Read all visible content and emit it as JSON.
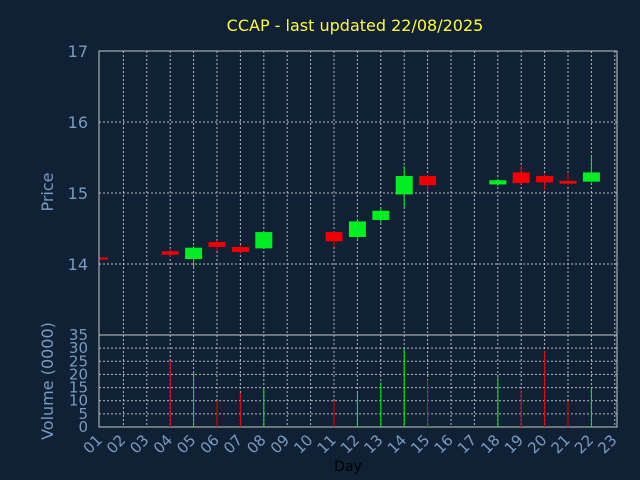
{
  "title": "CCAP - last updated 22/08/2025",
  "colors": {
    "background": "#102035",
    "title": "#ffff33",
    "axis_text": "#7a9cc0",
    "grid": "#c8c8c8",
    "up": "#00ee22",
    "down": "#ee0000",
    "xlabel": "#000000"
  },
  "chart_data": [
    {
      "type": "candlestick",
      "ylabel": "Price",
      "ylim": [
        13.0,
        17.0
      ],
      "yticks": [
        14,
        15,
        16,
        17
      ],
      "grid": true,
      "candles": [
        {
          "day": "01",
          "open": 14.09,
          "close": 14.08,
          "high": 14.1,
          "low": 14.08
        },
        {
          "day": "04",
          "open": 14.18,
          "close": 14.13,
          "high": 14.22,
          "low": 14.1
        },
        {
          "day": "05",
          "open": 14.07,
          "close": 14.23,
          "high": 14.25,
          "low": 13.94
        },
        {
          "day": "06",
          "open": 14.31,
          "close": 14.24,
          "high": 14.33,
          "low": 14.18
        },
        {
          "day": "07",
          "open": 14.24,
          "close": 14.17,
          "high": 14.27,
          "low": 14.14
        },
        {
          "day": "08",
          "open": 14.22,
          "close": 14.45,
          "high": 14.45,
          "low": 14.22
        },
        {
          "day": "11",
          "open": 14.45,
          "close": 14.32,
          "high": 14.46,
          "low": 14.24
        },
        {
          "day": "12",
          "open": 14.38,
          "close": 14.6,
          "high": 14.62,
          "low": 14.36
        },
        {
          "day": "13",
          "open": 14.62,
          "close": 14.75,
          "high": 14.79,
          "low": 14.58
        },
        {
          "day": "14",
          "open": 14.98,
          "close": 15.24,
          "high": 15.38,
          "low": 14.8
        },
        {
          "day": "15",
          "open": 15.24,
          "close": 15.11,
          "high": 15.26,
          "low": 15.02
        },
        {
          "day": "18",
          "open": 15.12,
          "close": 15.18,
          "high": 15.2,
          "low": 15.1
        },
        {
          "day": "19",
          "open": 15.29,
          "close": 15.14,
          "high": 15.38,
          "low": 15.12
        },
        {
          "day": "20",
          "open": 15.24,
          "close": 15.15,
          "high": 15.27,
          "low": 15.04
        },
        {
          "day": "21",
          "open": 15.17,
          "close": 15.13,
          "high": 15.29,
          "low": 15.11
        },
        {
          "day": "22",
          "open": 15.16,
          "close": 15.29,
          "high": 15.53,
          "low": 15.15
        }
      ]
    },
    {
      "type": "bar",
      "ylabel": "Volume (0000)",
      "ylim": [
        0,
        35
      ],
      "yticks": [
        0,
        5,
        10,
        15,
        20,
        25,
        30,
        35
      ],
      "grid": true,
      "xlabel": "Day",
      "categories": [
        "01",
        "02",
        "03",
        "04",
        "05",
        "06",
        "07",
        "08",
        "09",
        "10",
        "11",
        "12",
        "13",
        "14",
        "15",
        "16",
        "17",
        "18",
        "19",
        "20",
        "21",
        "22",
        "23"
      ],
      "bars": [
        {
          "day": "04",
          "value": 25,
          "direction": "down"
        },
        {
          "day": "05",
          "value": 21,
          "direction": "up"
        },
        {
          "day": "06",
          "value": 10,
          "direction": "down"
        },
        {
          "day": "07",
          "value": 13,
          "direction": "down"
        },
        {
          "day": "08",
          "value": 15,
          "direction": "up"
        },
        {
          "day": "11",
          "value": 10,
          "direction": "down"
        },
        {
          "day": "12",
          "value": 13,
          "direction": "up"
        },
        {
          "day": "13",
          "value": 17,
          "direction": "up"
        },
        {
          "day": "14",
          "value": 30,
          "direction": "up"
        },
        {
          "day": "15",
          "value": 18,
          "direction": "down"
        },
        {
          "day": "18",
          "value": 19,
          "direction": "up"
        },
        {
          "day": "19",
          "value": 14,
          "direction": "down"
        },
        {
          "day": "20",
          "value": 29,
          "direction": "down"
        },
        {
          "day": "21",
          "value": 10,
          "direction": "down"
        },
        {
          "day": "22",
          "value": 15,
          "direction": "up"
        }
      ]
    }
  ]
}
